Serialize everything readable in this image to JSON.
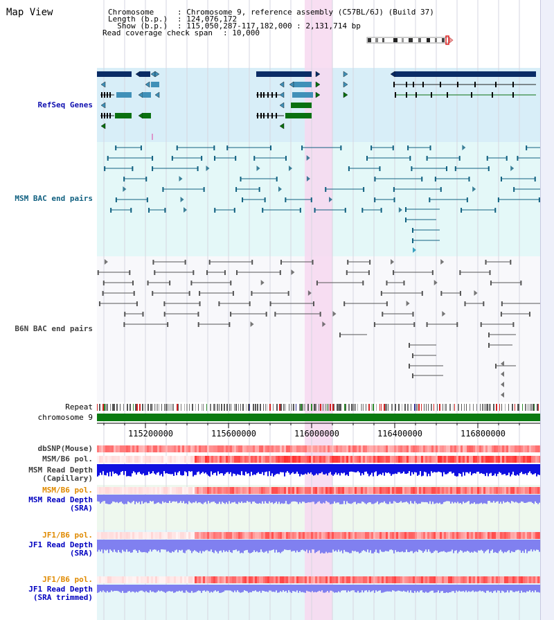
{
  "title": "Map View",
  "header": {
    "chromosome_label": "Chromosome    ",
    "chromosome_value": ": Chromosome 9, reference assembly (C57BL/6J) (Build 37)",
    "length_label": "Length (b.p.)",
    "length_value": ": 124,076,172",
    "show_label": "  Show (b.p.)",
    "show_value": ": 115,050,287-117,182,000 : 2,131,714 bp",
    "span_label": "Read coverage check span",
    "span_value": ": 10,000"
  },
  "tracks": {
    "refseq": "RefSeq Genes",
    "msm_bac": "MSM BAC end pairs",
    "b6n_bac": "B6N BAC end pairs",
    "repeat": "Repeat",
    "chromosome": "chromosome 9",
    "dbsnp": "dbSNP(Mouse)",
    "msm_b6_pol_1": "MSM/B6 pol.",
    "msm_depth_cap_1": "MSM Read Depth",
    "msm_depth_cap_2": "(Capillary)",
    "msm_b6_pol_2": "MSM/B6 pol.",
    "msm_depth_sra_1": "MSM Read Depth",
    "msm_depth_sra_2": "(SRA)",
    "jf1_pol_1": "JF1/B6 pol.",
    "jf1_depth_sra_1": "JF1 Read Depth",
    "jf1_depth_sra_2": "(SRA)",
    "jf1_pol_2": "JF1/B6 pol.",
    "jf1_depth_trim_1": "JF1 Read Depth",
    "jf1_depth_trim_2": "(SRA trimmed)"
  },
  "axis": {
    "ticks": [
      "115200000",
      "115600000",
      "116000000",
      "116400000",
      "116800000"
    ]
  },
  "colors": {
    "refseq_label": "#1010b0",
    "msm_label": "#106080",
    "b6n_label": "#404040",
    "orange_label": "#e08a00",
    "blue_label": "#0000c0",
    "highlight": "#f7d8f0",
    "refseq_band": "#d8eef8",
    "msm_band": "#e4f8f8",
    "navy": "#0a2c66",
    "steel": "#4090b8",
    "green": "#0a7010",
    "chrom_green": "#0a7a10",
    "depth_blue": "#1010e0",
    "depth_light": "#8080f0"
  }
}
